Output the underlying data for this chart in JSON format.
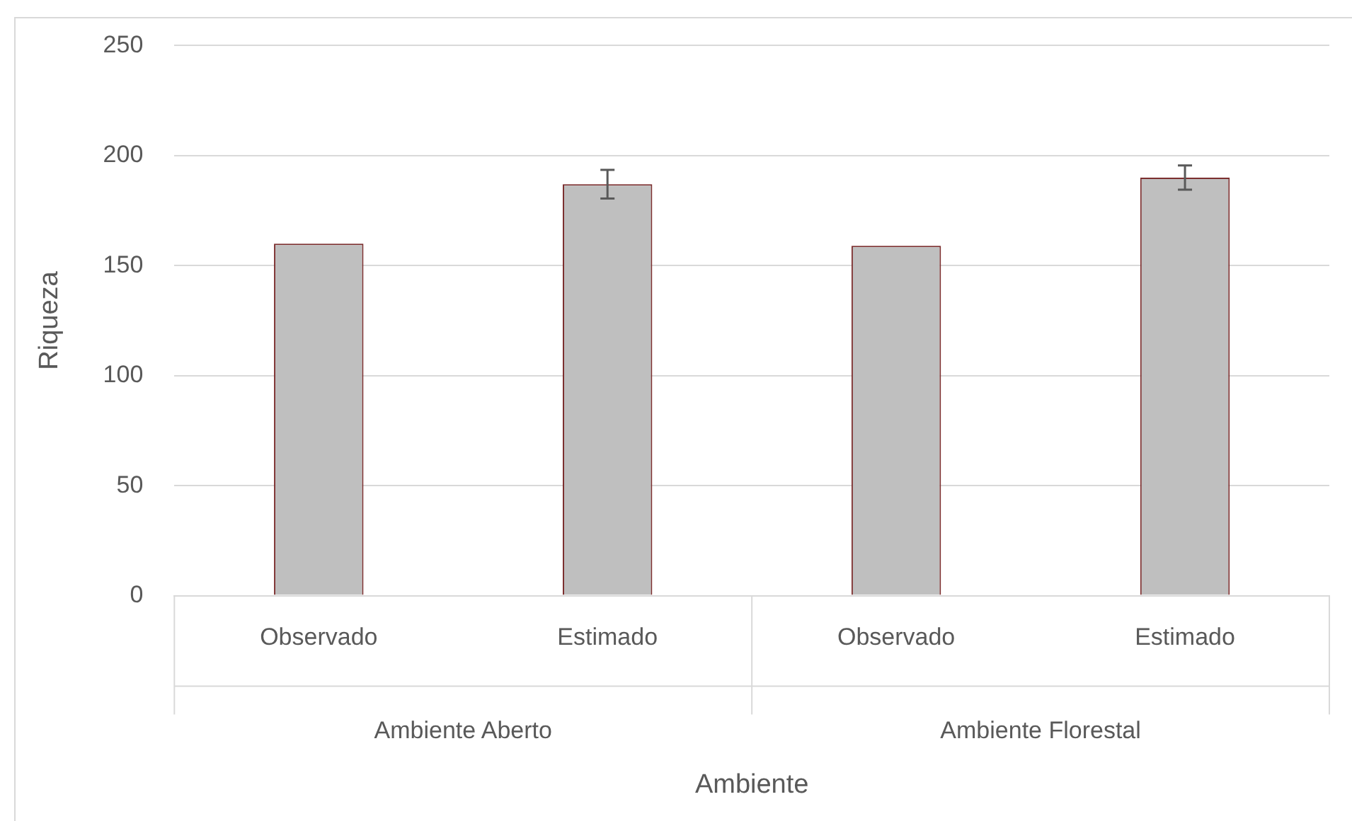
{
  "chart_data": {
    "type": "bar",
    "xlabel": "Ambiente",
    "ylabel": "Riqueza",
    "categories": [
      "Observado",
      "Estimado",
      "Observado",
      "Estimado"
    ],
    "annotations": [
      "Ambiente Aberto",
      "Ambiente Florestal"
    ],
    "values": [
      160,
      187,
      159,
      190
    ],
    "errors": [
      null,
      6.5,
      null,
      5.5
    ],
    "color": "#bfbfbf",
    "ylim": [
      0,
      250
    ],
    "yticks": [
      0,
      50,
      100,
      150,
      200,
      250
    ],
    "grid": "y",
    "legend": false
  }
}
